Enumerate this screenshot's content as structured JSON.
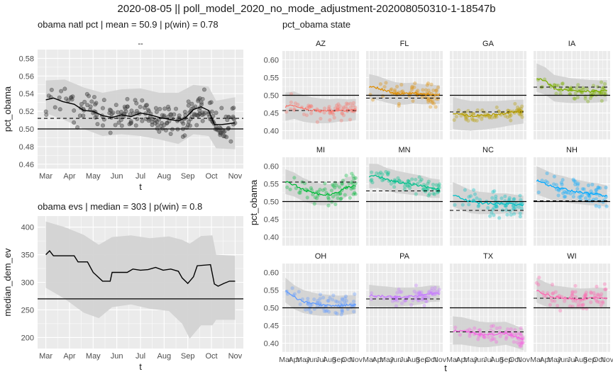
{
  "title": "2020-08-05 || poll_model_2020_no_mode_adjustment-202008050310-1-18547b",
  "colors": {
    "panel": "#ebebeb",
    "grid": "#ffffff",
    "band": "#d3d3d3",
    "points": "#444444"
  },
  "chart_data": [
    {
      "id": "natl",
      "type": "line",
      "title": "obama natl pct | mean = 50.9 | p(win) = 0.78",
      "strip": "--",
      "xlabel": "t",
      "ylabel": "pct_obama",
      "x_ticks": [
        "Mar",
        "Apr",
        "May",
        "Jun",
        "Jul",
        "Aug",
        "Sep",
        "Oct",
        "Nov"
      ],
      "ylim": [
        0.455,
        0.59
      ],
      "y_ticks": [
        0.46,
        0.48,
        0.5,
        0.52,
        0.54,
        0.56,
        0.58
      ],
      "hline_solid": 0.5,
      "hline_dashed": 0.512,
      "line": [
        [
          0,
          0.533
        ],
        [
          0.04,
          0.535
        ],
        [
          0.09,
          0.531
        ],
        [
          0.15,
          0.528
        ],
        [
          0.2,
          0.521
        ],
        [
          0.25,
          0.52
        ],
        [
          0.3,
          0.515
        ],
        [
          0.35,
          0.513
        ],
        [
          0.4,
          0.516
        ],
        [
          0.45,
          0.514
        ],
        [
          0.5,
          0.518
        ],
        [
          0.55,
          0.516
        ],
        [
          0.6,
          0.513
        ],
        [
          0.65,
          0.511
        ],
        [
          0.7,
          0.509
        ],
        [
          0.74,
          0.513
        ],
        [
          0.78,
          0.522
        ],
        [
          0.82,
          0.525
        ],
        [
          0.86,
          0.521
        ],
        [
          0.89,
          0.505
        ],
        [
          0.93,
          0.505
        ],
        [
          0.97,
          0.506
        ],
        [
          1,
          0.507
        ]
      ],
      "band_upper": [
        [
          0,
          0.555
        ],
        [
          0.1,
          0.556
        ],
        [
          0.2,
          0.547
        ],
        [
          0.3,
          0.541
        ],
        [
          0.4,
          0.545
        ],
        [
          0.5,
          0.546
        ],
        [
          0.6,
          0.541
        ],
        [
          0.7,
          0.541
        ],
        [
          0.78,
          0.55
        ],
        [
          0.86,
          0.548
        ],
        [
          0.9,
          0.532
        ],
        [
          1,
          0.536
        ]
      ],
      "band_lower": [
        [
          0,
          0.518
        ],
        [
          0.1,
          0.51
        ],
        [
          0.2,
          0.5
        ],
        [
          0.3,
          0.492
        ],
        [
          0.4,
          0.494
        ],
        [
          0.5,
          0.492
        ],
        [
          0.6,
          0.488
        ],
        [
          0.7,
          0.483
        ],
        [
          0.78,
          0.494
        ],
        [
          0.86,
          0.492
        ],
        [
          0.9,
          0.478
        ],
        [
          1,
          0.477
        ]
      ]
    },
    {
      "id": "evs",
      "type": "line",
      "title": "obama evs | median = 303 | p(win) = 0.8",
      "xlabel": "t",
      "ylabel": "median_dem_ev",
      "x_ticks": [
        "Mar",
        "Apr",
        "May",
        "Jun",
        "Jul",
        "Aug",
        "Sep",
        "Oct",
        "Nov"
      ],
      "ylim": [
        180,
        420
      ],
      "y_ticks": [
        200,
        250,
        300,
        350,
        400
      ],
      "hline_solid": 270,
      "line": [
        [
          0,
          350
        ],
        [
          0.02,
          357
        ],
        [
          0.04,
          348
        ],
        [
          0.15,
          348
        ],
        [
          0.17,
          337
        ],
        [
          0.22,
          337
        ],
        [
          0.25,
          318
        ],
        [
          0.3,
          302
        ],
        [
          0.34,
          302
        ],
        [
          0.35,
          318
        ],
        [
          0.43,
          318
        ],
        [
          0.46,
          324
        ],
        [
          0.5,
          322
        ],
        [
          0.54,
          323
        ],
        [
          0.58,
          327
        ],
        [
          0.62,
          322
        ],
        [
          0.66,
          324
        ],
        [
          0.7,
          320
        ],
        [
          0.72,
          308
        ],
        [
          0.75,
          298
        ],
        [
          0.78,
          310
        ],
        [
          0.8,
          330
        ],
        [
          0.87,
          332
        ],
        [
          0.89,
          297
        ],
        [
          0.91,
          293
        ],
        [
          0.94,
          298
        ],
        [
          0.97,
          302
        ],
        [
          1,
          302
        ]
      ],
      "band_upper": [
        [
          0,
          410
        ],
        [
          0.1,
          400
        ],
        [
          0.2,
          386
        ],
        [
          0.28,
          368
        ],
        [
          0.35,
          382
        ],
        [
          0.45,
          385
        ],
        [
          0.55,
          380
        ],
        [
          0.65,
          383
        ],
        [
          0.72,
          377
        ],
        [
          0.76,
          370
        ],
        [
          0.82,
          384
        ],
        [
          0.88,
          385
        ],
        [
          0.9,
          350
        ],
        [
          1,
          348
        ]
      ],
      "band_lower": [
        [
          0,
          290
        ],
        [
          0.1,
          270
        ],
        [
          0.2,
          245
        ],
        [
          0.28,
          235
        ],
        [
          0.35,
          255
        ],
        [
          0.45,
          260
        ],
        [
          0.55,
          252
        ],
        [
          0.65,
          248
        ],
        [
          0.72,
          225
        ],
        [
          0.76,
          198
        ],
        [
          0.82,
          222
        ],
        [
          0.88,
          222
        ],
        [
          0.9,
          232
        ],
        [
          1,
          232
        ]
      ]
    },
    {
      "id": "state",
      "type": "line",
      "title": "pct_obama state",
      "xlabel": "t",
      "ylabel": "pct_obama",
      "ylim": [
        0.375,
        0.625
      ],
      "y_ticks": [
        0.4,
        0.45,
        0.5,
        0.55,
        0.6
      ],
      "x_ticks": [
        "Mar",
        "Apr",
        "May",
        "Jun",
        "Jul",
        "Aug",
        "Sep",
        "Oct",
        "Nov"
      ],
      "hline_solid": 0.5,
      "panels": [
        {
          "state": "AZ",
          "color": "#f8766d",
          "dashed": 0.457,
          "start": 0.0,
          "level": [
            0.468,
            0.472,
            0.463,
            0.458,
            0.456,
            0.455,
            0.458,
            0.457,
            0.46
          ],
          "halfwidth": 0.04,
          "pspread": 0.022
        },
        {
          "state": "FL",
          "color": "#de8c00",
          "dashed": 0.492,
          "start": 0.0,
          "level": [
            0.525,
            0.52,
            0.512,
            0.505,
            0.504,
            0.506,
            0.503,
            0.502,
            0.502
          ],
          "halfwidth": 0.035,
          "pspread": 0.024
        },
        {
          "state": "GA",
          "color": "#b79f00",
          "dashed": 0.453,
          "start": 0.0,
          "level": [
            0.45,
            0.445,
            0.442,
            0.443,
            0.444,
            0.446,
            0.449,
            0.452,
            0.454
          ],
          "halfwidth": 0.045,
          "pspread": 0.016
        },
        {
          "state": "IA",
          "color": "#7cae00",
          "dashed": 0.523,
          "start": 0.0,
          "level": [
            0.55,
            0.54,
            0.52,
            0.516,
            0.513,
            0.512,
            0.511,
            0.511,
            0.513
          ],
          "halfwidth": 0.04,
          "pspread": 0.02
        },
        {
          "state": "MI",
          "color": "#00ba38",
          "dashed": 0.555,
          "start": 0.0,
          "level": [
            0.556,
            0.548,
            0.534,
            0.525,
            0.52,
            0.52,
            0.527,
            0.542,
            0.545
          ],
          "halfwidth": 0.035,
          "pspread": 0.03
        },
        {
          "state": "MN",
          "color": "#00c08b",
          "dashed": 0.53,
          "start": 0.0,
          "level": [
            0.572,
            0.572,
            0.562,
            0.556,
            0.552,
            0.548,
            0.545,
            0.538,
            0.536
          ],
          "halfwidth": 0.035,
          "pspread": 0.018
        },
        {
          "state": "NC",
          "color": "#00bfc4",
          "dashed": 0.475,
          "start": 0.0,
          "level": [
            0.52,
            0.51,
            0.5,
            0.496,
            0.495,
            0.494,
            0.495,
            0.492,
            0.49
          ],
          "halfwidth": 0.035,
          "pspread": 0.028
        },
        {
          "state": "NH",
          "color": "#00a9ff",
          "dashed": 0.502,
          "start": 0.0,
          "level": [
            0.56,
            0.55,
            0.54,
            0.536,
            0.53,
            0.526,
            0.522,
            0.52,
            0.515
          ],
          "halfwidth": 0.04,
          "pspread": 0.026
        },
        {
          "state": "OH",
          "color": "#619cff",
          "dashed": 0.5,
          "start": 0.0,
          "level": [
            0.55,
            0.53,
            0.518,
            0.512,
            0.508,
            0.507,
            0.506,
            0.508,
            0.51
          ],
          "halfwidth": 0.035,
          "pspread": 0.022
        },
        {
          "state": "PA",
          "color": "#c77cff",
          "dashed": 0.525,
          "start": 0.0,
          "level": [
            0.535,
            0.533,
            0.532,
            0.53,
            0.531,
            0.532,
            0.535,
            0.54,
            0.54
          ],
          "halfwidth": 0.03,
          "pspread": 0.02
        },
        {
          "state": "TX",
          "color": "#f564e3",
          "dashed": 0.432,
          "start": 0.0,
          "level": [
            0.436,
            0.435,
            0.43,
            0.425,
            0.424,
            0.426,
            0.428,
            0.42,
            0.41
          ],
          "halfwidth": 0.04,
          "pspread": 0.02
        },
        {
          "state": "WI",
          "color": "#ff64b0",
          "dashed": 0.527,
          "start": 0.0,
          "level": [
            0.55,
            0.538,
            0.53,
            0.528,
            0.526,
            0.525,
            0.527,
            0.53,
            0.528
          ],
          "halfwidth": 0.035,
          "pspread": 0.028
        }
      ]
    }
  ]
}
